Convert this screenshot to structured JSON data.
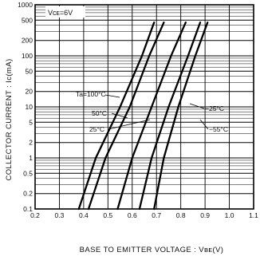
{
  "chart_data": {
    "type": "line",
    "xlabel": "BASE TO EMITTER VOLTAGE : Vʙᴇ(V)",
    "ylabel": "COLLECTOR CURRENT : Iᴄ(mA)",
    "condition": "Vᴄᴇ=6V",
    "x_scale": "linear",
    "y_scale": "log",
    "xlim": [
      0.2,
      1.1
    ],
    "ylim": [
      0.1,
      1000
    ],
    "x_ticks": [
      "0.2",
      "0.3",
      "0.4",
      "0.5",
      "0.6",
      "0.7",
      "0.8",
      "0.9",
      "1.0",
      "1.1"
    ],
    "y_ticks": [
      {
        "value": 1000,
        "label": "1000"
      },
      {
        "value": 500,
        "label": "500"
      },
      {
        "value": 200,
        "label": "200"
      },
      {
        "value": 100,
        "label": "100"
      },
      {
        "value": 50,
        "label": "50"
      },
      {
        "value": 20,
        "label": "20"
      },
      {
        "value": 10,
        "label": "10"
      },
      {
        "value": 5,
        "label": "5"
      },
      {
        "value": 2,
        "label": "2"
      },
      {
        "value": 1,
        "label": "1"
      },
      {
        "value": 0.5,
        "label": "0.5"
      },
      {
        "value": 0.2,
        "label": "0.2"
      },
      {
        "value": 0.1,
        "label": "0.1"
      }
    ],
    "grid": true,
    "series": [
      {
        "name": "Ta=100°C",
        "x": [
          0.38,
          0.45,
          0.55,
          0.64,
          0.69
        ],
        "y": [
          0.1,
          1,
          10,
          100,
          450
        ]
      },
      {
        "name": "50°C",
        "x": [
          0.42,
          0.49,
          0.59,
          0.67,
          0.73
        ],
        "y": [
          0.1,
          1,
          10,
          100,
          450
        ]
      },
      {
        "name": "25°C",
        "x": [
          0.54,
          0.6,
          0.68,
          0.76,
          0.82
        ],
        "y": [
          0.1,
          1,
          10,
          100,
          450
        ]
      },
      {
        "name": "−25°C",
        "x": [
          0.63,
          0.68,
          0.75,
          0.83,
          0.88
        ],
        "y": [
          0.1,
          1,
          10,
          100,
          450
        ]
      },
      {
        "name": "−55°C",
        "x": [
          0.69,
          0.73,
          0.79,
          0.86,
          0.91
        ],
        "y": [
          0.1,
          1,
          10,
          100,
          450
        ]
      }
    ]
  }
}
